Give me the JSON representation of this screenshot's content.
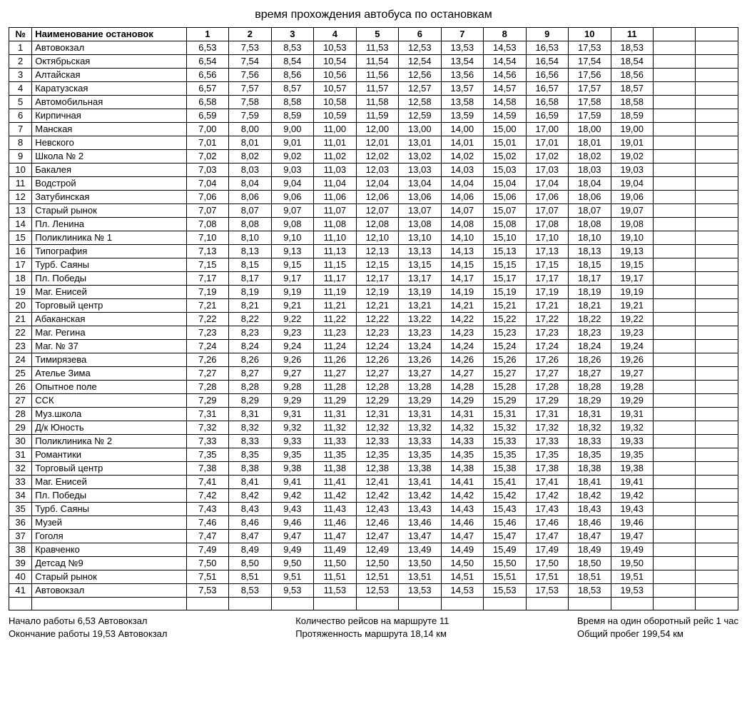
{
  "title": "время прохождения автобуса по остановкам",
  "columns": {
    "num": "№",
    "name": "Наименование остановок",
    "trips": [
      "1",
      "2",
      "3",
      "4",
      "5",
      "6",
      "7",
      "8",
      "9",
      "10",
      "11"
    ]
  },
  "extra_cols": 2,
  "rows": [
    {
      "n": 1,
      "name": "Автовокзал",
      "t": [
        "6,53",
        "7,53",
        "8,53",
        "10,53",
        "11,53",
        "12,53",
        "13,53",
        "14,53",
        "16,53",
        "17,53",
        "18,53"
      ]
    },
    {
      "n": 2,
      "name": "Октябрьская",
      "t": [
        "6,54",
        "7,54",
        "8,54",
        "10,54",
        "11,54",
        "12,54",
        "13,54",
        "14,54",
        "16,54",
        "17,54",
        "18,54"
      ]
    },
    {
      "n": 3,
      "name": "Алтайская",
      "t": [
        "6,56",
        "7,56",
        "8,56",
        "10,56",
        "11,56",
        "12,56",
        "13,56",
        "14,56",
        "16,56",
        "17,56",
        "18,56"
      ]
    },
    {
      "n": 4,
      "name": "Каратузская",
      "t": [
        "6,57",
        "7,57",
        "8,57",
        "10,57",
        "11,57",
        "12,57",
        "13,57",
        "14,57",
        "16,57",
        "17,57",
        "18,57"
      ]
    },
    {
      "n": 5,
      "name": "Автомобильная",
      "t": [
        "6,58",
        "7,58",
        "8,58",
        "10,58",
        "11,58",
        "12,58",
        "13,58",
        "14,58",
        "16,58",
        "17,58",
        "18,58"
      ]
    },
    {
      "n": 6,
      "name": "Кирпичная",
      "t": [
        "6,59",
        "7,59",
        "8,59",
        "10,59",
        "11,59",
        "12,59",
        "13,59",
        "14,59",
        "16,59",
        "17,59",
        "18,59"
      ]
    },
    {
      "n": 7,
      "name": "Манская",
      "t": [
        "7,00",
        "8,00",
        "9,00",
        "11,00",
        "12,00",
        "13,00",
        "14,00",
        "15,00",
        "17,00",
        "18,00",
        "19,00"
      ]
    },
    {
      "n": 8,
      "name": "Невского",
      "t": [
        "7,01",
        "8,01",
        "9,01",
        "11,01",
        "12,01",
        "13,01",
        "14,01",
        "15,01",
        "17,01",
        "18,01",
        "19,01"
      ]
    },
    {
      "n": 9,
      "name": "Школа № 2",
      "t": [
        "7,02",
        "8,02",
        "9,02",
        "11,02",
        "12,02",
        "13,02",
        "14,02",
        "15,02",
        "17,02",
        "18,02",
        "19,02"
      ]
    },
    {
      "n": 10,
      "name": "Бакалея",
      "t": [
        "7,03",
        "8,03",
        "9,03",
        "11,03",
        "12,03",
        "13,03",
        "14,03",
        "15,03",
        "17,03",
        "18,03",
        "19,03"
      ]
    },
    {
      "n": 11,
      "name": "Водстрой",
      "t": [
        "7,04",
        "8,04",
        "9,04",
        "11,04",
        "12,04",
        "13,04",
        "14,04",
        "15,04",
        "17,04",
        "18,04",
        "19,04"
      ]
    },
    {
      "n": 12,
      "name": "Затубинская",
      "t": [
        "7,06",
        "8,06",
        "9,06",
        "11,06",
        "12,06",
        "13,06",
        "14,06",
        "15,06",
        "17,06",
        "18,06",
        "19,06"
      ]
    },
    {
      "n": 13,
      "name": "Старый рынок",
      "t": [
        "7,07",
        "8,07",
        "9,07",
        "11,07",
        "12,07",
        "13,07",
        "14,07",
        "15,07",
        "17,07",
        "18,07",
        "19,07"
      ]
    },
    {
      "n": 14,
      "name": "Пл. Ленина",
      "t": [
        "7,08",
        "8,08",
        "9,08",
        "11,08",
        "12,08",
        "13,08",
        "14,08",
        "15,08",
        "17,08",
        "18,08",
        "19,08"
      ]
    },
    {
      "n": 15,
      "name": "Поликлиника № 1",
      "t": [
        "7,10",
        "8,10",
        "9,10",
        "11,10",
        "12,10",
        "13,10",
        "14,10",
        "15,10",
        "17,10",
        "18,10",
        "19,10"
      ]
    },
    {
      "n": 16,
      "name": "Типография",
      "t": [
        "7,13",
        "8,13",
        "9,13",
        "11,13",
        "12,13",
        "13,13",
        "14,13",
        "15,13",
        "17,13",
        "18,13",
        "19,13"
      ]
    },
    {
      "n": 17,
      "name": "Турб. Саяны",
      "t": [
        "7,15",
        "8,15",
        "9,15",
        "11,15",
        "12,15",
        "13,15",
        "14,15",
        "15,15",
        "17,15",
        "18,15",
        "19,15"
      ]
    },
    {
      "n": 18,
      "name": "Пл. Победы",
      "t": [
        "7,17",
        "8,17",
        "9,17",
        "11,17",
        "12,17",
        "13,17",
        "14,17",
        "15,17",
        "17,17",
        "18,17",
        "19,17"
      ]
    },
    {
      "n": 19,
      "name": "Маг. Енисей",
      "t": [
        "7,19",
        "8,19",
        "9,19",
        "11,19",
        "12,19",
        "13,19",
        "14,19",
        "15,19",
        "17,19",
        "18,19",
        "19,19"
      ]
    },
    {
      "n": 20,
      "name": "Торговый центр",
      "t": [
        "7,21",
        "8,21",
        "9,21",
        "11,21",
        "12,21",
        "13,21",
        "14,21",
        "15,21",
        "17,21",
        "18,21",
        "19,21"
      ]
    },
    {
      "n": 21,
      "name": "Абаканская",
      "t": [
        "7,22",
        "8,22",
        "9,22",
        "11,22",
        "12,22",
        "13,22",
        "14,22",
        "15,22",
        "17,22",
        "18,22",
        "19,22"
      ]
    },
    {
      "n": 22,
      "name": "Маг. Регина",
      "t": [
        "7,23",
        "8,23",
        "9,23",
        "11,23",
        "12,23",
        "13,23",
        "14,23",
        "15,23",
        "17,23",
        "18,23",
        "19,23"
      ]
    },
    {
      "n": 23,
      "name": "Маг. № 37",
      "t": [
        "7,24",
        "8,24",
        "9,24",
        "11,24",
        "12,24",
        "13,24",
        "14,24",
        "15,24",
        "17,24",
        "18,24",
        "19,24"
      ]
    },
    {
      "n": 24,
      "name": "Тимирязева",
      "t": [
        "7,26",
        "8,26",
        "9,26",
        "11,26",
        "12,26",
        "13,26",
        "14,26",
        "15,26",
        "17,26",
        "18,26",
        "19,26"
      ]
    },
    {
      "n": 25,
      "name": "Ателье Зима",
      "t": [
        "7,27",
        "8,27",
        "9,27",
        "11,27",
        "12,27",
        "13,27",
        "14,27",
        "15,27",
        "17,27",
        "18,27",
        "19,27"
      ]
    },
    {
      "n": 26,
      "name": "Опытное поле",
      "t": [
        "7,28",
        "8,28",
        "9,28",
        "11,28",
        "12,28",
        "13,28",
        "14,28",
        "15,28",
        "17,28",
        "18,28",
        "19,28"
      ]
    },
    {
      "n": 27,
      "name": "ССК",
      "t": [
        "7,29",
        "8,29",
        "9,29",
        "11,29",
        "12,29",
        "13,29",
        "14,29",
        "15,29",
        "17,29",
        "18,29",
        "19,29"
      ]
    },
    {
      "n": 28,
      "name": "Муз.школа",
      "t": [
        "7,31",
        "8,31",
        "9,31",
        "11,31",
        "12,31",
        "13,31",
        "14,31",
        "15,31",
        "17,31",
        "18,31",
        "19,31"
      ]
    },
    {
      "n": 29,
      "name": "Д/к Юность",
      "t": [
        "7,32",
        "8,32",
        "9,32",
        "11,32",
        "12,32",
        "13,32",
        "14,32",
        "15,32",
        "17,32",
        "18,32",
        "19,32"
      ]
    },
    {
      "n": 30,
      "name": "Поликлиника № 2",
      "t": [
        "7,33",
        "8,33",
        "9,33",
        "11,33",
        "12,33",
        "13,33",
        "14,33",
        "15,33",
        "17,33",
        "18,33",
        "19,33"
      ]
    },
    {
      "n": 31,
      "name": "Романтики",
      "t": [
        "7,35",
        "8,35",
        "9,35",
        "11,35",
        "12,35",
        "13,35",
        "14,35",
        "15,35",
        "17,35",
        "18,35",
        "19,35"
      ]
    },
    {
      "n": 32,
      "name": "Торговый центр",
      "t": [
        "7,38",
        "8,38",
        "9,38",
        "11,38",
        "12,38",
        "13,38",
        "14,38",
        "15,38",
        "17,38",
        "18,38",
        "19,38"
      ]
    },
    {
      "n": 33,
      "name": "Маг. Енисей",
      "t": [
        "7,41",
        "8,41",
        "9,41",
        "11,41",
        "12,41",
        "13,41",
        "14,41",
        "15,41",
        "17,41",
        "18,41",
        "19,41"
      ]
    },
    {
      "n": 34,
      "name": "Пл. Победы",
      "t": [
        "7,42",
        "8,42",
        "9,42",
        "11,42",
        "12,42",
        "13,42",
        "14,42",
        "15,42",
        "17,42",
        "18,42",
        "19,42"
      ]
    },
    {
      "n": 35,
      "name": "Турб. Саяны",
      "t": [
        "7,43",
        "8,43",
        "9,43",
        "11,43",
        "12,43",
        "13,43",
        "14,43",
        "15,43",
        "17,43",
        "18,43",
        "19,43"
      ]
    },
    {
      "n": 36,
      "name": "Музей",
      "t": [
        "7,46",
        "8,46",
        "9,46",
        "11,46",
        "12,46",
        "13,46",
        "14,46",
        "15,46",
        "17,46",
        "18,46",
        "19,46"
      ]
    },
    {
      "n": 37,
      "name": "Гоголя",
      "t": [
        "7,47",
        "8,47",
        "9,47",
        "11,47",
        "12,47",
        "13,47",
        "14,47",
        "15,47",
        "17,47",
        "18,47",
        "19,47"
      ]
    },
    {
      "n": 38,
      "name": "Кравченко",
      "t": [
        "7,49",
        "8,49",
        "9,49",
        "11,49",
        "12,49",
        "13,49",
        "14,49",
        "15,49",
        "17,49",
        "18,49",
        "19,49"
      ]
    },
    {
      "n": 39,
      "name": "Детсад №9",
      "t": [
        "7,50",
        "8,50",
        "9,50",
        "11,50",
        "12,50",
        "13,50",
        "14,50",
        "15,50",
        "17,50",
        "18,50",
        "19,50"
      ]
    },
    {
      "n": 40,
      "name": "Старый рынок",
      "t": [
        "7,51",
        "8,51",
        "9,51",
        "11,51",
        "12,51",
        "13,51",
        "14,51",
        "15,51",
        "17,51",
        "18,51",
        "19,51"
      ]
    },
    {
      "n": 41,
      "name": "Автовокзал",
      "t": [
        "7,53",
        "8,53",
        "9,53",
        "11,53",
        "12,53",
        "13,53",
        "14,53",
        "15,53",
        "17,53",
        "18,53",
        "19,53"
      ]
    }
  ],
  "footer": {
    "left": [
      "Начало работы 6,53 Автовокзал",
      "Окончание работы 19,53 Автовокзал"
    ],
    "mid": [
      "Количество рейсов на маршруте 11",
      "Протяженность маршрута 18,14 км"
    ],
    "right": [
      "Время на один оборотный рейс 1 час",
      "Общий пробег 199,54 км"
    ]
  }
}
